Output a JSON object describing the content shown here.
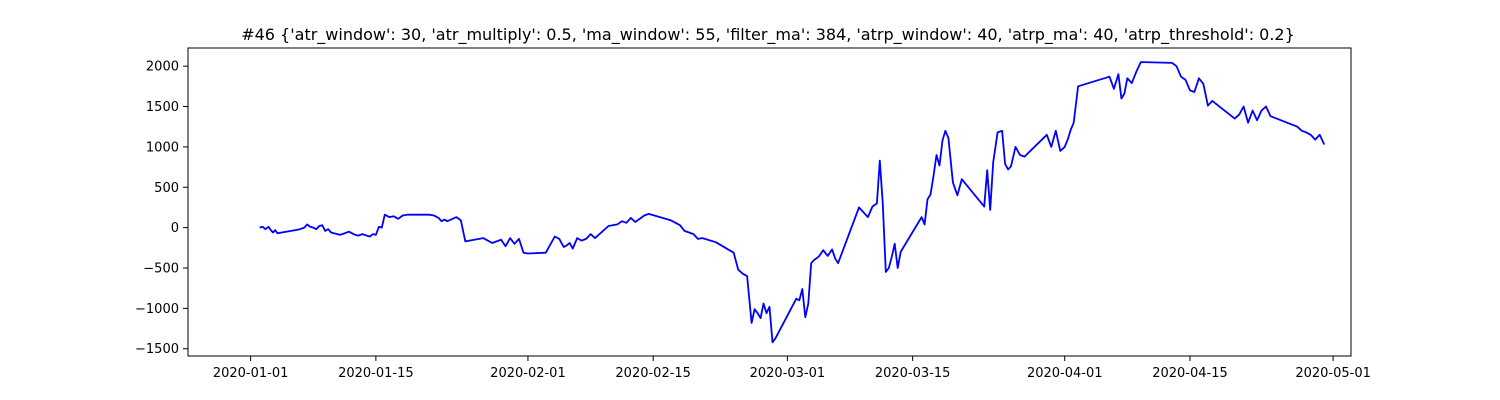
{
  "chart_data": {
    "type": "line",
    "title": "#46 {'atr_window': 30, 'atr_multiply': 0.5, 'ma_window': 55, 'filter_ma': 384, 'atrp_window': 40, 'atrp_ma': 40, 'atrp_threshold': 0.2}",
    "xlabel": "",
    "ylabel": "",
    "grid": false,
    "x_axis": {
      "type": "date",
      "range": [
        "2019-12-25",
        "2020-05-03"
      ],
      "ticks": [
        "2020-01-01",
        "2020-01-15",
        "2020-02-01",
        "2020-02-15",
        "2020-03-01",
        "2020-03-15",
        "2020-04-01",
        "2020-04-15",
        "2020-05-01"
      ],
      "tick_labels": [
        "2020-01-01",
        "2020-01-15",
        "2020-02-01",
        "2020-02-15",
        "2020-03-01",
        "2020-03-15",
        "2020-04-01",
        "2020-04-15",
        "2020-05-01"
      ]
    },
    "y_axis": {
      "range": [
        -1590,
        2225
      ],
      "ticks": [
        -1500,
        -1000,
        -500,
        0,
        500,
        1000,
        1500,
        2000
      ],
      "tick_labels": [
        "−1500",
        "−1000",
        "−500",
        "0",
        "500",
        "1000",
        "1500",
        "2000"
      ]
    },
    "series": [
      {
        "color": "#0000ff",
        "x": [
          "2020-01-02",
          "2020-01-02",
          "2020-01-02",
          "2020-01-03",
          "2020-01-03",
          "2020-01-03",
          "2020-01-03",
          "2020-01-04",
          "2020-01-06",
          "2020-01-06",
          "2020-01-07",
          "2020-01-07",
          "2020-01-07",
          "2020-01-08",
          "2020-01-08",
          "2020-01-08",
          "2020-01-09",
          "2020-01-09",
          "2020-01-09",
          "2020-01-10",
          "2020-01-11",
          "2020-01-12",
          "2020-01-12",
          "2020-01-13",
          "2020-01-13",
          "2020-01-14",
          "2020-01-14",
          "2020-01-14",
          "2020-01-15",
          "2020-01-15",
          "2020-01-15",
          "2020-01-16",
          "2020-01-16",
          "2020-01-17",
          "2020-01-17",
          "2020-01-18",
          "2020-01-18",
          "2020-01-21",
          "2020-01-21",
          "2020-01-22",
          "2020-01-22",
          "2020-01-22",
          "2020-01-23",
          "2020-01-24",
          "2020-01-24",
          "2020-01-25",
          "2020-01-27",
          "2020-01-28",
          "2020-01-29",
          "2020-01-29",
          "2020-01-30",
          "2020-01-30",
          "2020-01-31",
          "2020-01-31",
          "2020-02-01",
          "2020-02-03",
          "2020-02-04",
          "2020-02-04",
          "2020-02-05",
          "2020-02-05",
          "2020-02-05",
          "2020-02-06",
          "2020-02-06",
          "2020-02-07",
          "2020-02-07",
          "2020-02-08",
          "2020-02-08",
          "2020-02-10",
          "2020-02-11",
          "2020-02-11",
          "2020-02-12",
          "2020-02-12",
          "2020-02-13",
          "2020-02-14",
          "2020-02-14",
          "2020-02-17",
          "2020-02-18",
          "2020-02-18",
          "2020-02-19",
          "2020-02-19",
          "2020-02-20",
          "2020-02-20",
          "2020-02-22",
          "2020-02-24",
          "2020-02-24",
          "2020-02-25",
          "2020-02-25",
          "2020-02-26",
          "2020-02-26",
          "2020-02-26",
          "2020-02-27",
          "2020-02-27",
          "2020-02-27",
          "2020-02-28",
          "2020-02-28",
          "2020-02-28",
          "2020-03-02",
          "2020-03-02",
          "2020-03-02",
          "2020-03-03",
          "2020-03-03",
          "2020-03-03",
          "2020-03-04",
          "2020-03-04",
          "2020-03-05",
          "2020-03-05",
          "2020-03-06",
          "2020-03-06",
          "2020-03-06",
          "2020-03-09",
          "2020-03-10",
          "2020-03-10",
          "2020-03-11",
          "2020-03-11",
          "2020-03-11",
          "2020-03-12",
          "2020-03-12",
          "2020-03-12",
          "2020-03-13",
          "2020-03-13",
          "2020-03-13",
          "2020-03-16",
          "2020-03-16",
          "2020-03-16",
          "2020-03-17",
          "2020-03-17",
          "2020-03-17",
          "2020-03-18",
          "2020-03-18",
          "2020-03-18",
          "2020-03-19",
          "2020-03-19",
          "2020-03-20",
          "2020-03-20",
          "2020-03-23",
          "2020-03-23",
          "2020-03-23",
          "2020-03-24",
          "2020-03-24",
          "2020-03-25",
          "2020-03-25",
          "2020-03-25",
          "2020-03-26",
          "2020-03-26",
          "2020-03-27",
          "2020-03-27",
          "2020-03-30",
          "2020-03-30",
          "2020-03-31",
          "2020-03-31",
          "2020-04-01",
          "2020-04-01",
          "2020-04-01",
          "2020-04-02",
          "2020-04-02",
          "2020-04-06",
          "2020-04-06",
          "2020-04-07",
          "2020-04-07",
          "2020-04-07",
          "2020-04-08",
          "2020-04-08",
          "2020-04-09",
          "2020-04-09",
          "2020-04-13",
          "2020-04-13",
          "2020-04-14",
          "2020-04-14",
          "2020-04-15",
          "2020-04-15",
          "2020-04-16",
          "2020-04-16",
          "2020-04-17",
          "2020-04-17",
          "2020-04-20",
          "2020-04-20",
          "2020-04-21",
          "2020-04-21",
          "2020-04-22",
          "2020-04-22",
          "2020-04-23",
          "2020-04-23",
          "2020-04-24",
          "2020-04-27",
          "2020-04-27",
          "2020-04-28",
          "2020-04-28",
          "2020-04-29",
          "2020-04-29",
          "2020-04-30"
        ],
        "y": [
          0,
          10,
          -20,
          10,
          -30,
          -60,
          -30,
          -70,
          -30,
          -20,
          0,
          40,
          10,
          0,
          -20,
          20,
          30,
          -40,
          -20,
          -60,
          -90,
          -50,
          -80,
          -100,
          -80,
          -100,
          -110,
          -80,
          -90,
          10,
          0,
          160,
          130,
          140,
          110,
          150,
          160,
          160,
          150,
          120,
          80,
          100,
          80,
          130,
          90,
          -170,
          -130,
          -190,
          -150,
          -230,
          -130,
          -200,
          -140,
          -310,
          -320,
          -310,
          -110,
          -140,
          -240,
          -220,
          -190,
          -260,
          -130,
          -160,
          -140,
          -80,
          -130,
          20,
          40,
          80,
          60,
          120,
          70,
          150,
          170,
          90,
          30,
          -40,
          -60,
          -80,
          -140,
          -130,
          -180,
          -310,
          -520,
          -570,
          -600,
          -1180,
          -1010,
          -1060,
          -1120,
          -940,
          -1060,
          -980,
          -1420,
          -1370,
          -880,
          -900,
          -760,
          -1110,
          -940,
          -440,
          -400,
          -360,
          -280,
          -350,
          -270,
          -380,
          -440,
          250,
          130,
          260,
          300,
          830,
          290,
          -550,
          -500,
          -360,
          -200,
          -500,
          -300,
          130,
          40,
          350,
          410,
          640,
          900,
          770,
          1080,
          1200,
          1110,
          560,
          400,
          600,
          260,
          710,
          220,
          810,
          1180,
          1200,
          790,
          720,
          760,
          1000,
          900,
          880,
          1150,
          1000,
          1200,
          950,
          1000,
          1090,
          1210,
          1300,
          1750,
          1870,
          1720,
          1900,
          1600,
          1660,
          1850,
          1790,
          1930,
          2050,
          2040,
          2000,
          1870,
          1830,
          1700,
          1680,
          1850,
          1780,
          1510,
          1570,
          1350,
          1400,
          1500,
          1300,
          1450,
          1330,
          1450,
          1500,
          1380,
          1250,
          1200,
          1180,
          1150,
          1090,
          1150,
          1030
        ]
      }
    ]
  }
}
